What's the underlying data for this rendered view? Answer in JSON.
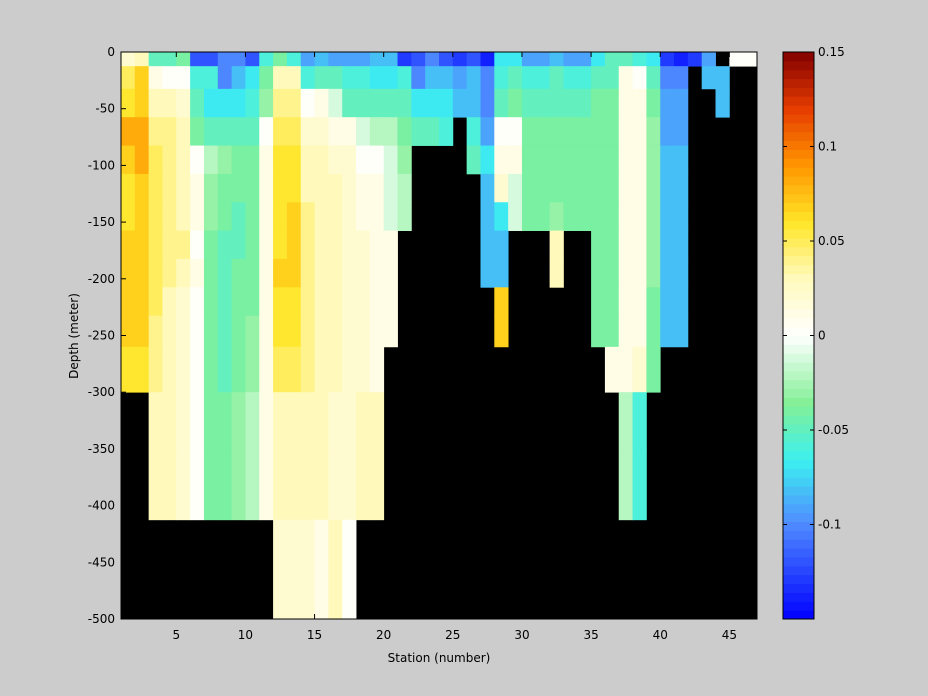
{
  "chart_data": {
    "type": "heatmap",
    "xlabel": "Station (number)",
    "ylabel": "Depth (meter)",
    "xlim": [
      1,
      47
    ],
    "ylim": [
      -500,
      0
    ],
    "xticks": [
      5,
      10,
      15,
      20,
      25,
      30,
      35,
      40,
      45
    ],
    "yticks": [
      0,
      -50,
      -100,
      -150,
      -200,
      -250,
      -300,
      -350,
      -400,
      -450,
      -500
    ],
    "colorbar": {
      "limits": [
        -0.15,
        0.15
      ],
      "ticks": [
        0.15,
        0.1,
        0.05,
        0,
        -0.05,
        -0.1
      ],
      "tick_labels": [
        "0.15",
        "0.1",
        "0.05",
        "0",
        "-0.05",
        "-0.1"
      ],
      "colormap": "jet-with-white-center",
      "levels": 64
    },
    "background_color": "#000000",
    "depth_levels": [
      -5,
      -20,
      -45,
      -70,
      -95,
      -120,
      -145,
      -170,
      -195,
      -220,
      -245,
      -275,
      -325,
      -375,
      -450
    ],
    "station_max_depth": [
      -300,
      -300,
      -400,
      -400,
      -400,
      -400,
      -400,
      -400,
      -400,
      -400,
      -400,
      -500,
      -500,
      -500,
      -500,
      -500,
      -500,
      -400,
      -400,
      -250,
      -175,
      -175,
      -25,
      -25,
      -25,
      -45,
      -70,
      -195,
      -245,
      -145,
      -145,
      -145,
      -195,
      -145,
      -245,
      -245,
      -300,
      -400,
      -400,
      -300,
      -245,
      -20,
      -20,
      -45,
      -5,
      -5
    ],
    "values": [
      [
        0.02,
        0.03,
        -0.05,
        -0.05,
        -0.04,
        -0.12,
        -0.12,
        -0.1,
        -0.1,
        -0.12,
        -0.06,
        -0.04,
        -0.06,
        -0.09,
        -0.08,
        -0.09,
        -0.09,
        -0.09,
        -0.08,
        -0.08,
        -0.13,
        -0.12,
        -0.1,
        -0.12,
        -0.13,
        -0.12,
        -0.14,
        -0.07,
        -0.07,
        -0.09,
        -0.09,
        -0.08,
        -0.09,
        -0.09,
        -0.07,
        -0.05,
        -0.05,
        -0.06,
        -0.07,
        -0.13,
        -0.14,
        -0.13,
        -0.09,
        null,
        0,
        0
      ],
      [
        0.05,
        0.07,
        0.01,
        0.0,
        0.0,
        -0.06,
        -0.06,
        -0.1,
        -0.08,
        -0.07,
        -0.04,
        0.03,
        0.03,
        -0.06,
        -0.05,
        -0.05,
        -0.06,
        -0.06,
        -0.07,
        -0.07,
        -0.06,
        -0.1,
        -0.08,
        -0.08,
        -0.09,
        -0.08,
        -0.1,
        -0.06,
        -0.05,
        -0.06,
        -0.06,
        -0.05,
        -0.06,
        -0.06,
        -0.05,
        -0.05,
        0.01,
        0.0,
        -0.05,
        -0.1,
        -0.1,
        null,
        -0.08,
        -0.08,
        null,
        null
      ],
      [
        0.06,
        0.07,
        0.03,
        0.03,
        0.02,
        -0.05,
        -0.07,
        -0.07,
        -0.07,
        -0.06,
        -0.03,
        0.04,
        0.04,
        0.0,
        0.01,
        -0.01,
        -0.05,
        -0.05,
        -0.05,
        -0.05,
        -0.05,
        -0.07,
        -0.07,
        -0.07,
        -0.08,
        -0.08,
        -0.1,
        -0.05,
        -0.04,
        -0.05,
        -0.05,
        -0.05,
        -0.05,
        -0.05,
        -0.04,
        -0.04,
        0.01,
        0.01,
        -0.04,
        -0.09,
        -0.09,
        null,
        null,
        -0.08,
        null,
        null
      ],
      [
        0.08,
        0.08,
        0.04,
        0.04,
        0.03,
        -0.04,
        -0.05,
        -0.05,
        -0.05,
        -0.05,
        0.0,
        0.05,
        0.05,
        0.02,
        0.02,
        0.01,
        0.01,
        -0.01,
        -0.02,
        -0.02,
        -0.04,
        -0.05,
        -0.05,
        -0.06,
        null,
        -0.06,
        -0.09,
        0.0,
        0.0,
        -0.04,
        -0.04,
        -0.04,
        -0.04,
        -0.04,
        -0.04,
        -0.04,
        0.01,
        0.01,
        -0.03,
        -0.09,
        -0.09,
        null,
        null,
        null,
        null,
        null
      ],
      [
        0.07,
        0.08,
        0.05,
        0.04,
        0.03,
        0.0,
        -0.02,
        -0.03,
        -0.04,
        -0.04,
        0.01,
        0.06,
        0.06,
        0.03,
        0.03,
        0.02,
        0.02,
        0.0,
        0.0,
        -0.01,
        -0.03,
        null,
        null,
        null,
        null,
        -0.05,
        -0.07,
        0.01,
        0.01,
        -0.04,
        -0.04,
        -0.04,
        -0.04,
        -0.04,
        -0.04,
        -0.04,
        0.01,
        0.01,
        -0.03,
        -0.08,
        -0.08,
        null,
        null,
        null,
        null,
        null
      ],
      [
        0.06,
        0.07,
        0.05,
        0.04,
        0.03,
        0.01,
        -0.03,
        -0.04,
        -0.04,
        -0.04,
        0.01,
        0.06,
        0.06,
        0.03,
        0.03,
        0.03,
        0.02,
        0.01,
        0.01,
        -0.01,
        -0.02,
        null,
        null,
        null,
        null,
        null,
        -0.08,
        0.02,
        -0.01,
        -0.04,
        -0.04,
        -0.04,
        -0.04,
        -0.04,
        -0.04,
        -0.04,
        0.01,
        0.01,
        -0.03,
        -0.08,
        -0.08,
        null,
        null,
        null,
        null,
        null
      ],
      [
        0.06,
        0.07,
        0.05,
        0.04,
        0.03,
        0.01,
        -0.03,
        -0.04,
        -0.05,
        -0.04,
        0.01,
        0.06,
        0.07,
        0.04,
        0.03,
        0.03,
        0.02,
        0.01,
        0.01,
        -0.01,
        -0.02,
        null,
        null,
        null,
        null,
        null,
        -0.08,
        -0.07,
        -0.01,
        -0.04,
        -0.04,
        -0.03,
        -0.04,
        -0.04,
        -0.04,
        -0.04,
        0.01,
        0.01,
        -0.03,
        -0.08,
        -0.08,
        null,
        null,
        null,
        null,
        null
      ],
      [
        0.07,
        0.07,
        0.05,
        0.04,
        0.04,
        0.0,
        -0.04,
        -0.05,
        -0.05,
        -0.04,
        0.01,
        0.06,
        0.07,
        0.04,
        0.03,
        0.03,
        0.02,
        0.02,
        0.01,
        0.01,
        null,
        null,
        null,
        null,
        null,
        null,
        -0.08,
        -0.08,
        null,
        null,
        null,
        0.03,
        null,
        null,
        -0.04,
        -0.04,
        0.01,
        0.01,
        -0.03,
        -0.08,
        -0.08,
        null,
        null,
        null,
        null,
        null
      ],
      [
        0.07,
        0.07,
        0.05,
        0.04,
        0.03,
        0.01,
        -0.04,
        -0.05,
        -0.04,
        -0.04,
        0.01,
        0.07,
        0.07,
        0.04,
        0.03,
        0.03,
        0.02,
        0.02,
        0.01,
        0.01,
        null,
        null,
        null,
        null,
        null,
        null,
        -0.08,
        -0.08,
        null,
        null,
        null,
        0.03,
        null,
        null,
        -0.04,
        -0.04,
        0.01,
        0.01,
        -0.03,
        -0.08,
        -0.08,
        null,
        null,
        null,
        null,
        null
      ],
      [
        0.07,
        0.07,
        0.05,
        0.03,
        0.02,
        0.0,
        -0.04,
        -0.05,
        -0.04,
        -0.04,
        0.01,
        0.06,
        0.06,
        0.04,
        0.03,
        0.03,
        0.02,
        0.02,
        0.01,
        0.01,
        null,
        null,
        null,
        null,
        null,
        null,
        null,
        0.07,
        null,
        null,
        null,
        null,
        null,
        null,
        -0.04,
        -0.04,
        0.01,
        0.01,
        -0.04,
        -0.08,
        -0.08,
        null,
        null,
        null,
        null,
        null
      ],
      [
        0.07,
        0.07,
        0.04,
        0.03,
        0.02,
        0.0,
        -0.04,
        -0.05,
        -0.04,
        -0.03,
        0.01,
        0.06,
        0.06,
        0.04,
        0.03,
        0.03,
        0.02,
        0.02,
        0.01,
        0.01,
        null,
        null,
        null,
        null,
        null,
        null,
        null,
        0.07,
        null,
        null,
        null,
        null,
        null,
        null,
        -0.04,
        -0.04,
        0.01,
        0.01,
        -0.04,
        -0.08,
        -0.08,
        null,
        null,
        null,
        null,
        null
      ],
      [
        0.06,
        0.06,
        0.04,
        0.03,
        0.02,
        0.0,
        -0.04,
        -0.05,
        -0.04,
        -0.03,
        0.01,
        0.05,
        0.05,
        0.04,
        0.03,
        0.03,
        0.02,
        0.02,
        0.01,
        null,
        null,
        null,
        null,
        null,
        null,
        null,
        null,
        null,
        null,
        null,
        null,
        null,
        null,
        null,
        null,
        0.01,
        0.01,
        0.02,
        -0.04,
        null,
        null,
        null,
        null,
        null,
        null,
        null
      ],
      [
        null,
        null,
        0.03,
        0.03,
        0.02,
        0.0,
        -0.04,
        -0.04,
        -0.03,
        -0.02,
        0.01,
        0.03,
        0.03,
        0.03,
        0.03,
        0.02,
        0.02,
        0.03,
        0.03,
        null,
        null,
        null,
        null,
        null,
        null,
        null,
        null,
        null,
        null,
        null,
        null,
        null,
        null,
        null,
        null,
        null,
        -0.02,
        -0.06,
        null,
        null,
        null,
        null,
        null,
        null,
        null,
        null
      ],
      [
        null,
        null,
        0.03,
        0.03,
        0.02,
        0.0,
        -0.04,
        -0.04,
        -0.03,
        -0.02,
        0.01,
        0.03,
        0.03,
        0.03,
        0.03,
        0.02,
        0.02,
        0.03,
        0.03,
        null,
        null,
        null,
        null,
        null,
        null,
        null,
        null,
        null,
        null,
        null,
        null,
        null,
        null,
        null,
        null,
        null,
        -0.02,
        -0.06,
        null,
        null,
        null,
        null,
        null,
        null,
        null,
        null
      ],
      [
        null,
        null,
        null,
        null,
        null,
        null,
        null,
        null,
        null,
        null,
        null,
        0.02,
        0.02,
        0.02,
        0.01,
        0.03,
        0.0,
        null,
        null,
        null,
        null,
        null,
        null,
        null,
        null,
        null,
        null,
        null,
        null,
        null,
        null,
        null,
        null,
        null,
        null,
        null,
        null,
        null,
        null,
        null,
        null,
        null,
        null,
        null,
        null,
        null
      ]
    ]
  }
}
